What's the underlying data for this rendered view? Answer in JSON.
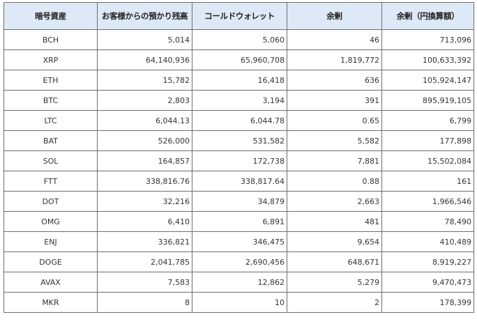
{
  "table": {
    "headers": [
      "暗号資産",
      "お客様からの預かり残高",
      "コールドウォレット",
      "余剰",
      "余剰（円換算額）"
    ],
    "rows": [
      [
        "BCH",
        "5,014",
        "5,060",
        "46",
        "713,096"
      ],
      [
        "XRP",
        "64,140,936",
        "65,960,708",
        "1,819,772",
        "100,633,392"
      ],
      [
        "ETH",
        "15,782",
        "16,418",
        "636",
        "105,924,147"
      ],
      [
        "BTC",
        "2,803",
        "3,194",
        "391",
        "895,919,105"
      ],
      [
        "LTC",
        "6,044.13",
        "6,044.78",
        "0.65",
        "6,799"
      ],
      [
        "BAT",
        "526,000",
        "531,582",
        "5,582",
        "177,898"
      ],
      [
        "SOL",
        "164,857",
        "172,738",
        "7,881",
        "15,502,084"
      ],
      [
        "FTT",
        "338,816.76",
        "338,817.64",
        "0.88",
        "161"
      ],
      [
        "DOT",
        "32,216",
        "34,879",
        "2,663",
        "1,966,546"
      ],
      [
        "OMG",
        "6,410",
        "6,891",
        "481",
        "78,490"
      ],
      [
        "ENJ",
        "336,821",
        "346,475",
        "9,654",
        "410,489"
      ],
      [
        "DOGE",
        "2,041,785",
        "2,690,456",
        "648,671",
        "8,919,227"
      ],
      [
        "AVAX",
        "7,583",
        "12,862",
        "5,279",
        "9,470,473"
      ],
      [
        "MKR",
        "8",
        "10",
        "2",
        "178,399"
      ]
    ]
  },
  "colors": {
    "header_background": "#dde9f6",
    "border": "#6d6d6d",
    "text": "#333333"
  }
}
